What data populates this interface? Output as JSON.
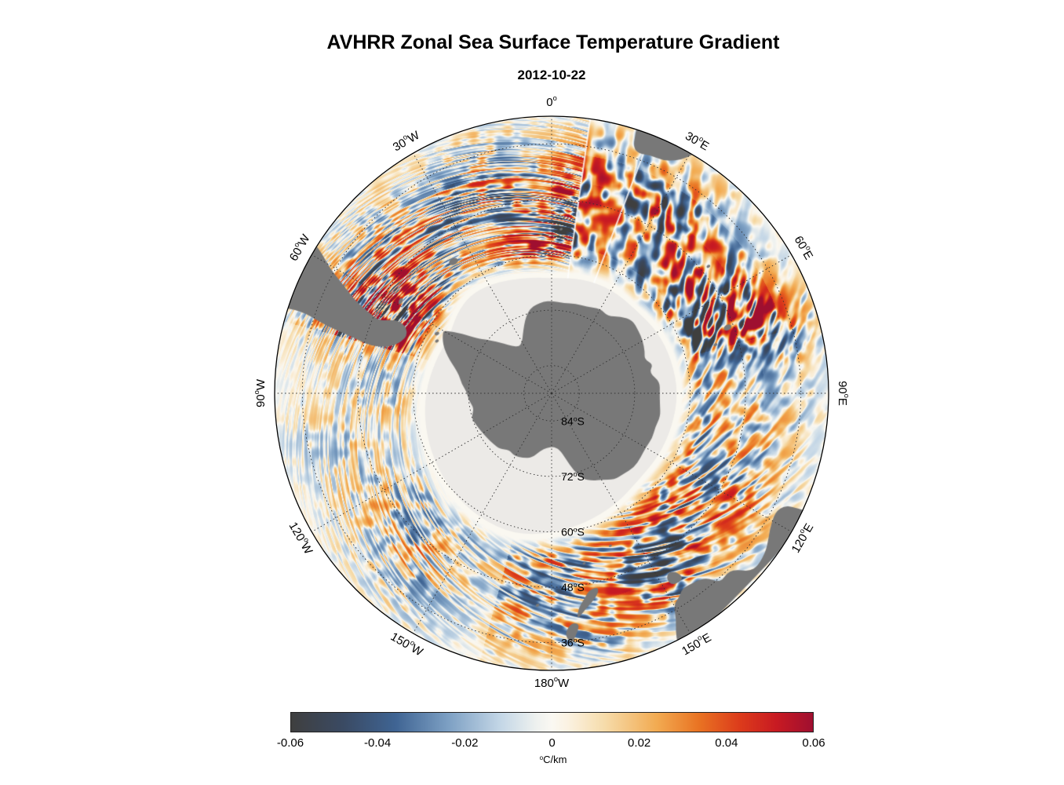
{
  "title": "AVHRR Zonal Sea Surface Temperature Gradient",
  "subtitle": "2012-10-22",
  "chart_data": {
    "type": "heatmap",
    "projection": "south polar stereographic",
    "quantity": "zonal sea surface temperature gradient",
    "date": "2012-10-22",
    "pole": "south",
    "outer_latitude_deg_s": 30,
    "grid_style": "dotted",
    "longitude_grid": {
      "angles_deg_east": [
        0,
        30,
        60,
        90,
        120,
        150,
        180,
        210,
        240,
        270,
        300,
        330
      ],
      "labels": [
        "0°",
        "30°E",
        "60°E",
        "90°E",
        "120°E",
        "150°E",
        "180°W",
        "150°W",
        "120°W",
        "90°W",
        "60°W",
        "30°W"
      ]
    },
    "latitude_grid": {
      "values_deg_s": [
        84,
        72,
        60,
        48,
        36
      ],
      "labels": [
        "84°S",
        "72°S",
        "60°S",
        "48°S",
        "36°S"
      ]
    },
    "colorbar": {
      "label": "°C/km",
      "min": -0.06,
      "max": 0.06,
      "tick_values": [
        -0.06,
        -0.04,
        -0.02,
        0,
        0.02,
        0.04,
        0.06
      ],
      "tick_labels": [
        "-0.06",
        "-0.04",
        "-0.02",
        "0",
        "0.02",
        "0.04",
        "0.06"
      ]
    },
    "colormap_stops": [
      {
        "pos": 0.0,
        "color": "#3f3f3f"
      },
      {
        "pos": 0.1,
        "color": "#3a4a63"
      },
      {
        "pos": 0.2,
        "color": "#3f6493"
      },
      {
        "pos": 0.3,
        "color": "#7c9fc3"
      },
      {
        "pos": 0.4,
        "color": "#c3d6e6"
      },
      {
        "pos": 0.47,
        "color": "#eef1ef"
      },
      {
        "pos": 0.5,
        "color": "#faf8f2"
      },
      {
        "pos": 0.53,
        "color": "#fbf2e2"
      },
      {
        "pos": 0.6,
        "color": "#f6dcab"
      },
      {
        "pos": 0.7,
        "color": "#f2ab52"
      },
      {
        "pos": 0.78,
        "color": "#e97423"
      },
      {
        "pos": 0.86,
        "color": "#dc3b1b"
      },
      {
        "pos": 0.93,
        "color": "#c81a22"
      },
      {
        "pos": 1.0,
        "color": "#9f0f30"
      }
    ],
    "colors": {
      "land": "#787878",
      "sea_ice": "#eceae7",
      "ocean": "#f8f6f1",
      "graticule": "#333333",
      "outline": "#000000",
      "background": "#ffffff"
    },
    "sea_ice_edge": [
      [
        0,
        65
      ],
      [
        15,
        64.3
      ],
      [
        30,
        64
      ],
      [
        45,
        64.3
      ],
      [
        60,
        63.4
      ],
      [
        75,
        63
      ],
      [
        90,
        62.6
      ],
      [
        105,
        62.9
      ],
      [
        120,
        63.1
      ],
      [
        135,
        63.4
      ],
      [
        150,
        62.2
      ],
      [
        165,
        61
      ],
      [
        180,
        59.6
      ],
      [
        195,
        58.4
      ],
      [
        210,
        58.8
      ],
      [
        225,
        59.6
      ],
      [
        240,
        60.6
      ],
      [
        255,
        61.6
      ],
      [
        270,
        62.6
      ],
      [
        285,
        63.8
      ],
      [
        300,
        64.6
      ],
      [
        310,
        63.2
      ],
      [
        320,
        62.4
      ],
      [
        330,
        62.9
      ],
      [
        340,
        63.8
      ],
      [
        350,
        64.6
      ]
    ],
    "land_polygons": {
      "antarctica": [
        [
          0,
          70
        ],
        [
          8,
          70.3
        ],
        [
          15,
          69.9
        ],
        [
          22,
          69.8
        ],
        [
          30,
          68.8
        ],
        [
          36,
          69.4
        ],
        [
          42,
          67.6
        ],
        [
          48,
          66.4
        ],
        [
          54,
          66.8
        ],
        [
          60,
          67.2
        ],
        [
          66,
          67.9
        ],
        [
          70,
          68.6
        ],
        [
          74,
          67.1
        ],
        [
          78,
          68.4
        ],
        [
          84,
          66.4
        ],
        [
          90,
          66.6
        ],
        [
          96,
          66.4
        ],
        [
          102,
          65.9
        ],
        [
          108,
          66.4
        ],
        [
          114,
          66.1
        ],
        [
          120,
          66.5
        ],
        [
          126,
          66.2
        ],
        [
          132,
          66.0
        ],
        [
          138,
          66.6
        ],
        [
          144,
          66.9
        ],
        [
          150,
          68.4
        ],
        [
          155,
          69.1
        ],
        [
          160,
          70.3
        ],
        [
          164,
          72.6
        ],
        [
          168,
          75.6
        ],
        [
          172,
          77.7
        ],
        [
          178,
          78.4
        ],
        [
          185,
          78.2
        ],
        [
          191,
          77.3
        ],
        [
          197,
          75.4
        ],
        [
          204,
          74.7
        ],
        [
          211,
          74.2
        ],
        [
          217,
          74.7
        ],
        [
          223,
          73.5
        ],
        [
          229,
          73.3
        ],
        [
          235,
          73.0
        ],
        [
          241,
          72.7
        ],
        [
          247,
          72.3
        ],
        [
          253,
          71.8
        ],
        [
          259,
          72.9
        ],
        [
          265,
          72.0
        ],
        [
          271,
          71.6
        ],
        [
          276,
          70.4
        ],
        [
          281,
          69.6
        ],
        [
          285,
          68.2
        ],
        [
          288,
          66.8
        ],
        [
          291,
          65.5
        ],
        [
          294,
          64.3
        ],
        [
          297,
          63.5
        ],
        [
          299,
          63.1
        ],
        [
          300,
          63.0
        ],
        [
          301,
          63.9
        ],
        [
          302,
          65.0
        ],
        [
          303,
          66.1
        ],
        [
          304,
          67.3
        ],
        [
          305,
          68.4
        ],
        [
          306,
          69.6
        ],
        [
          308,
          70.9
        ],
        [
          310,
          72.1
        ],
        [
          313,
          73.6
        ],
        [
          316,
          75.1
        ],
        [
          320,
          76.6
        ],
        [
          325,
          77.7
        ],
        [
          330,
          77.2
        ],
        [
          334,
          75.8
        ],
        [
          338,
          74.1
        ],
        [
          342,
          72.3
        ],
        [
          346,
          71.1
        ],
        [
          350,
          70.5
        ],
        [
          355,
          70.1
        ]
      ],
      "south_america": [
        [
          287.5,
          27
        ],
        [
          288.2,
          33
        ],
        [
          287.2,
          37
        ],
        [
          286.4,
          41
        ],
        [
          285.8,
          45
        ],
        [
          284.8,
          49
        ],
        [
          285.3,
          52
        ],
        [
          286.5,
          54
        ],
        [
          289,
          55.6
        ],
        [
          292,
          56.3
        ],
        [
          294.6,
          55.2
        ],
        [
          295.4,
          53.2
        ],
        [
          294.2,
          51.3
        ],
        [
          292.8,
          49.3
        ],
        [
          293.8,
          47
        ],
        [
          294.8,
          44
        ],
        [
          296.4,
          41
        ],
        [
          298,
          38
        ],
        [
          299.6,
          34.5
        ],
        [
          301.5,
          31.5
        ],
        [
          303,
          27
        ]
      ],
      "falkland_islands": [
        [
          300.5,
          51.4
        ],
        [
          302.2,
          51.2
        ],
        [
          302.6,
          51.9
        ],
        [
          301.2,
          52.2
        ],
        [
          300.2,
          51.9
        ]
      ],
      "africa": [
        [
          17.5,
          27
        ],
        [
          17.9,
          31
        ],
        [
          18.4,
          33.9
        ],
        [
          20,
          34.8
        ],
        [
          22.5,
          34.2
        ],
        [
          25.5,
          34.1
        ],
        [
          27.8,
          33.1
        ],
        [
          30,
          31.1
        ],
        [
          31.5,
          28
        ],
        [
          31.8,
          27
        ]
      ],
      "australia": [
        [
          114.5,
          27
        ],
        [
          115,
          31
        ],
        [
          115.6,
          33.9
        ],
        [
          118,
          35.2
        ],
        [
          122,
          34.3
        ],
        [
          126,
          32.4
        ],
        [
          130,
          31.7
        ],
        [
          132,
          32.4
        ],
        [
          134,
          35.1
        ],
        [
          136,
          35.6
        ],
        [
          137.6,
          35.2
        ],
        [
          138.6,
          35.7
        ],
        [
          139.6,
          37.3
        ],
        [
          141,
          38.3
        ],
        [
          144,
          38.9
        ],
        [
          146.2,
          39.1
        ],
        [
          148,
          37.9
        ],
        [
          150,
          37.1
        ],
        [
          151.2,
          34
        ],
        [
          152.4,
          32
        ],
        [
          153.4,
          29
        ],
        [
          153.8,
          27
        ]
      ],
      "tasmania": [
        [
          144.7,
          40.9
        ],
        [
          146,
          40.6
        ],
        [
          147.9,
          41
        ],
        [
          148.3,
          42.6
        ],
        [
          147,
          43.7
        ],
        [
          145.4,
          43.1
        ],
        [
          144.6,
          41.9
        ]
      ],
      "new_zealand_south": [
        [
          166.5,
          46.1
        ],
        [
          168,
          44.6
        ],
        [
          170,
          43.4
        ],
        [
          172,
          41.9
        ],
        [
          173.6,
          40.7
        ],
        [
          172.9,
          43.1
        ],
        [
          171,
          44.9
        ],
        [
          169.2,
          46.6
        ],
        [
          166.9,
          46.9
        ]
      ],
      "new_zealand_north": [
        [
          173.1,
          39.4
        ],
        [
          174.3,
          37.2
        ],
        [
          175.4,
          35.6
        ],
        [
          176.9,
          37.6
        ],
        [
          175.6,
          39.6
        ],
        [
          174.2,
          40.1
        ]
      ],
      "small_islands_lon_lat_radius": [
        [
          323.3,
          54.4,
          6
        ],
        [
          69.5,
          49.3,
          5
        ],
        [
          73.5,
          53,
          2.5
        ],
        [
          51,
          46.3,
          2.5
        ],
        [
          158.9,
          54.6,
          2
        ],
        [
          169.2,
          52.5,
          2
        ],
        [
          183.8,
          44,
          2.5
        ],
        [
          3.3,
          54.4,
          2
        ],
        [
          297.5,
          62,
          3
        ],
        [
          294.5,
          62.7,
          2.5
        ]
      ]
    }
  }
}
